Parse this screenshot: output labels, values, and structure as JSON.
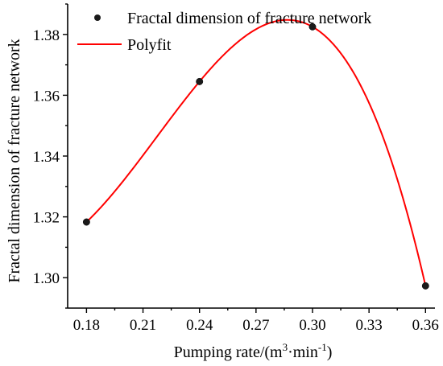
{
  "chart_data": {
    "type": "scatter",
    "xlabel": "Pumping rate/(m³·min⁻¹)",
    "xlabel_parts": {
      "main": "Pumping rate/(m",
      "sup1": "3",
      "mid": "·min",
      "sup2": "-1",
      "end": ")"
    },
    "ylabel": "Fractal dimension of fracture network",
    "xlim": [
      0.17,
      0.365
    ],
    "ylim": [
      1.29,
      1.39
    ],
    "xticks": [
      "0.18",
      "0.21",
      "0.24",
      "0.27",
      "0.30",
      "0.33",
      "0.36"
    ],
    "yticks": [
      "1.30",
      "1.32",
      "1.34",
      "1.36",
      "1.38"
    ],
    "grid": false,
    "legend_position": "top",
    "series": [
      {
        "name": "Fractal dimension of fracture network",
        "kind": "scatter",
        "marker_color": "#1a1a1a",
        "x": [
          0.18,
          0.24,
          0.3,
          0.36
        ],
        "y": [
          1.3183,
          1.3645,
          1.3825,
          1.2973
        ]
      },
      {
        "name": "Polyfit",
        "kind": "line",
        "color": "#ff0000"
      }
    ]
  }
}
